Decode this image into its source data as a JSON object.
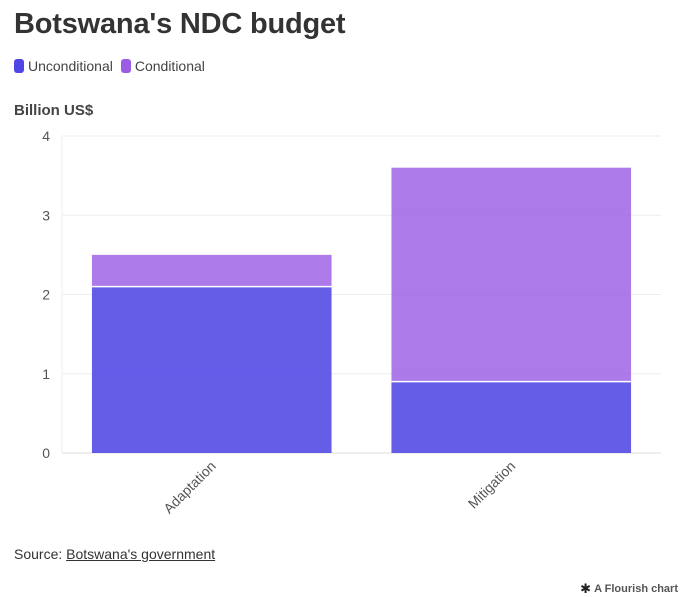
{
  "header": {
    "title": "Botswana's NDC budget"
  },
  "legend": [
    {
      "label": "Unconditional",
      "color": "#5046e5"
    },
    {
      "label": "Conditional",
      "color": "#9b5de5"
    }
  ],
  "axis": {
    "ylabel": "Billion US$"
  },
  "chart_data": {
    "type": "bar",
    "stacked": true,
    "categories": [
      "Adaptation",
      "Mitigation"
    ],
    "series": [
      {
        "name": "Unconditional",
        "values": [
          2.1,
          0.9
        ],
        "color": "#5046e5"
      },
      {
        "name": "Conditional",
        "values": [
          0.4,
          2.7
        ],
        "color": "#9b5de5"
      }
    ],
    "title": "Botswana's NDC budget",
    "ylabel": "Billion US$",
    "xlabel": "",
    "ylim": [
      0,
      4
    ],
    "yticks": [
      0,
      1,
      2,
      3,
      4
    ],
    "grid": true,
    "legend_position": "top-left"
  },
  "footer": {
    "source_prefix": "Source: ",
    "source_link": "Botswana's government",
    "credit": "A Flourish chart"
  }
}
